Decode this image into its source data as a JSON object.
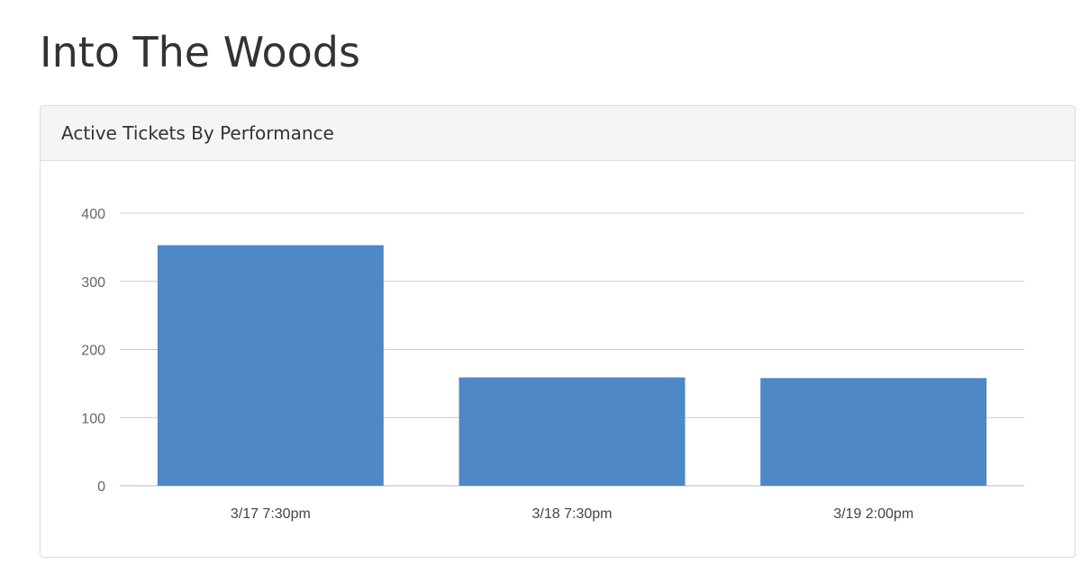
{
  "page": {
    "title": "Into The Woods"
  },
  "panel": {
    "heading": "Active Tickets By Performance"
  },
  "chart_data": {
    "type": "bar",
    "categories": [
      "3/17 7:30pm",
      "3/18 7:30pm",
      "3/19 2:00pm"
    ],
    "values": [
      353,
      159,
      158
    ],
    "ylim": [
      0,
      400
    ],
    "yticks": [
      0,
      100,
      200,
      300,
      400
    ],
    "grid": true,
    "legend": "none",
    "bar_color": "#4e88c7",
    "grid_color": "#cccccc"
  }
}
